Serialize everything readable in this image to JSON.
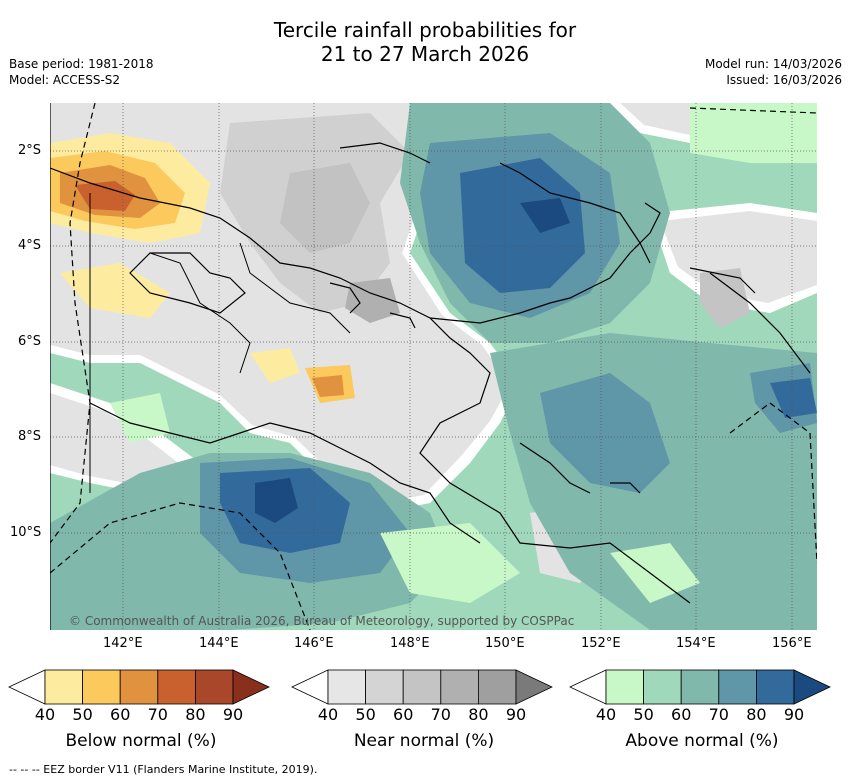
{
  "header": {
    "title_line1": "Tercile rainfall probabilities for",
    "title_line2": "21 to 27 March 2026",
    "base_period": "Base period: 1981-2018",
    "model": "Model: ACCESS-S2",
    "model_run": "Model run: 14/03/2026",
    "issued": "Issued: 16/03/2026"
  },
  "map": {
    "credit": "© Commonwealth of Australia 2026, Bureau of Meteorology, supported by COSPPac",
    "lat_labels": [
      "2°S",
      "4°S",
      "6°S",
      "8°S",
      "10°S"
    ],
    "lon_labels": [
      "142°E",
      "144°E",
      "146°E",
      "148°E",
      "150°E",
      "152°E",
      "154°E",
      "156°E"
    ]
  },
  "legend": {
    "ticks": [
      "40",
      "50",
      "60",
      "70",
      "80",
      "90"
    ],
    "below": {
      "label": "Below normal (%)",
      "colors": [
        "#ffffff",
        "#fdeca0",
        "#fbc95c",
        "#e0923f",
        "#c9612e",
        "#a9472a",
        "#8b2f1d"
      ]
    },
    "near": {
      "label": "Near normal (%)",
      "colors": [
        "#ffffff",
        "#e6e6e6",
        "#d4d4d4",
        "#c4c4c4",
        "#b0b0b0",
        "#9f9f9f",
        "#7a7a7a"
      ]
    },
    "above": {
      "label": "Above normal (%)",
      "colors": [
        "#ffffff",
        "#c8f8c8",
        "#a0d8bc",
        "#80b8ac",
        "#5f96a8",
        "#336a9c",
        "#1a4a80"
      ]
    }
  },
  "footer": {
    "eez_note": "--  --  -- EEZ border V11 (Flanders Marine Institute, 2019)."
  }
}
